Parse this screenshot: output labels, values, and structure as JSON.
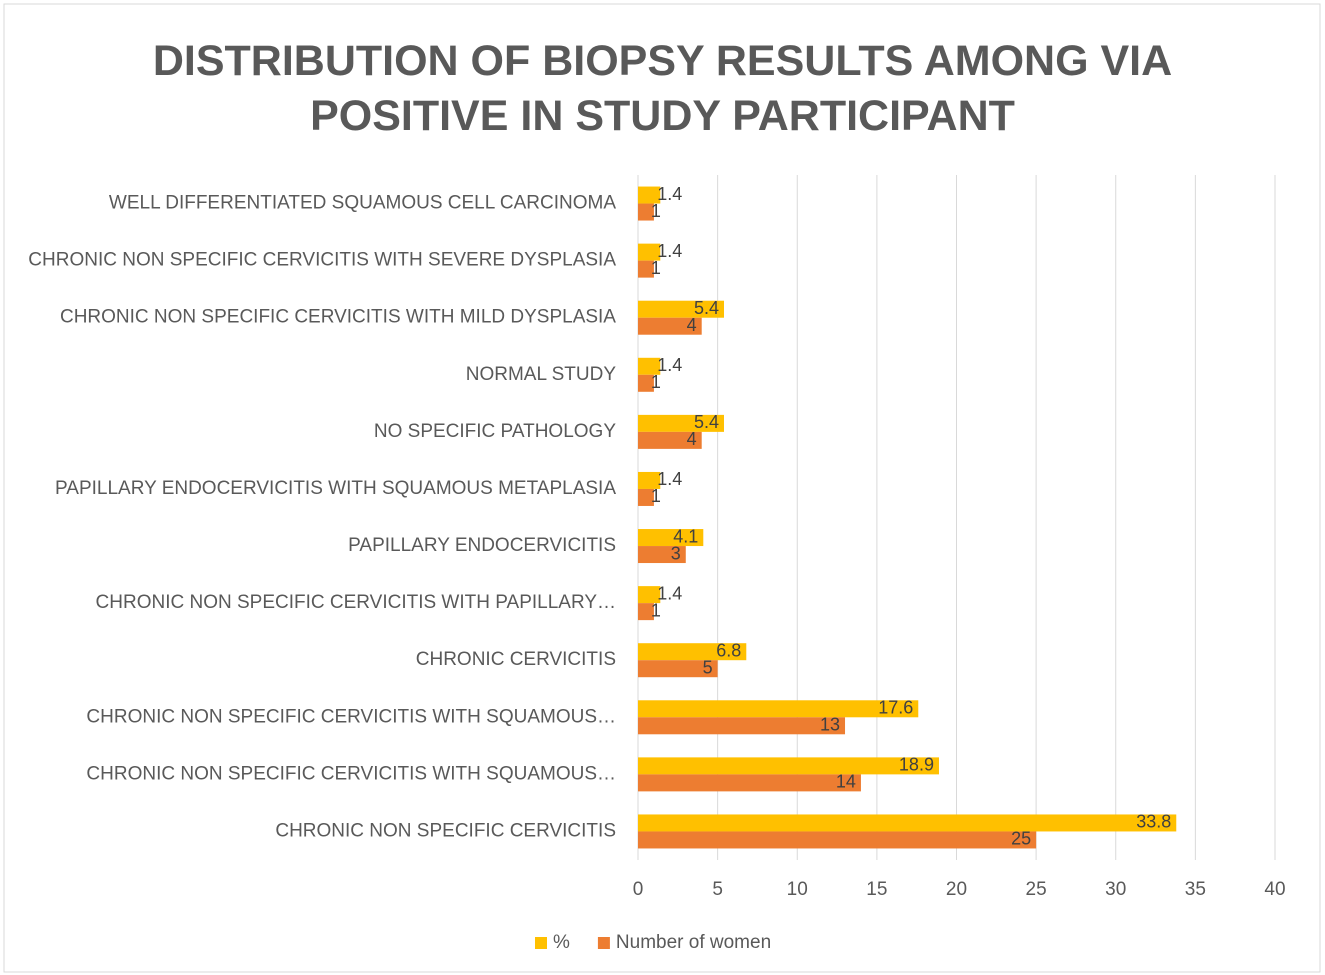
{
  "chart_data": {
    "type": "hbar",
    "title": "DISTRIBUTION OF BIOPSY RESULTS AMONG VIA POSITIVE IN STUDY PARTICIPANT",
    "categories": [
      "WELL DIFFERENTIATED SQUAMOUS CELL CARCINOMA",
      "CHRONIC NON SPECIFIC CERVICITIS WITH SEVERE DYSPLASIA",
      "CHRONIC NON SPECIFIC CERVICITIS WITH MILD DYSPLASIA",
      "NORMAL STUDY",
      "NO SPECIFIC PATHOLOGY",
      "PAPILLARY ENDOCERVICITIS WITH SQUAMOUS METAPLASIA",
      "PAPILLARY ENDOCERVICITIS",
      "CHRONIC NON SPECIFIC CERVICITIS WITH PAPILLARY…",
      "CHRONIC CERVICITIS",
      "CHRONIC NON SPECIFIC CERVICITIS WITH SQUAMOUS…",
      "CHRONIC NON SPECIFIC CERVICITIS WITH SQUAMOUS…",
      "CHRONIC NON SPECIFIC CERVICITIS"
    ],
    "series": [
      {
        "name": "%",
        "color": "#FFC000",
        "values": [
          1.4,
          1.4,
          5.4,
          1.4,
          5.4,
          1.4,
          4.1,
          1.4,
          6.8,
          17.6,
          18.9,
          33.8
        ]
      },
      {
        "name": "Number of women",
        "color": "#ED7D31",
        "values": [
          1,
          1,
          4,
          1,
          4,
          1,
          3,
          1,
          5,
          13,
          14,
          25
        ]
      }
    ],
    "xlim": [
      0,
      40
    ],
    "xticks": [
      0,
      5,
      10,
      15,
      20,
      25,
      30,
      35,
      40
    ],
    "grid": true,
    "legend": "bottom"
  }
}
